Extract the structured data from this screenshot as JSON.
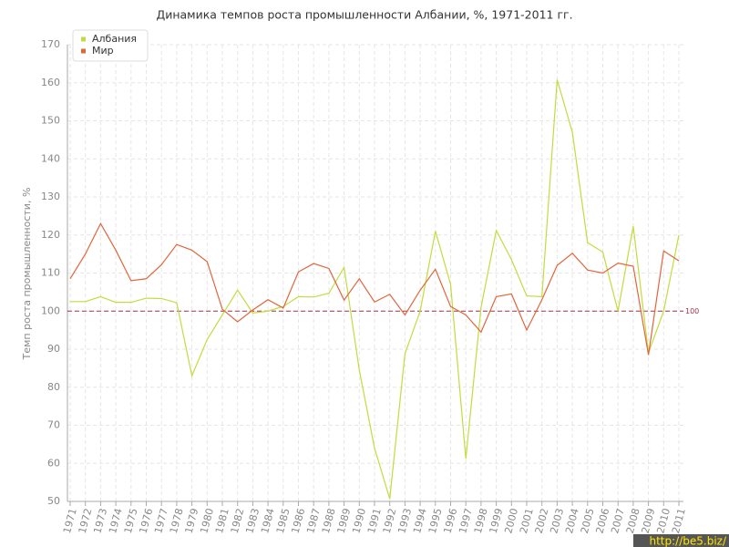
{
  "chart_data": {
    "type": "line",
    "title": "Динамика темпов роста промышленности Албании, %, 1971-2011 гг.",
    "y_label": "Темп роста промышленности, %",
    "categories": [
      "1971",
      "1972",
      "1973",
      "1974",
      "1975",
      "1976",
      "1977",
      "1978",
      "1979",
      "1980",
      "1981",
      "1982",
      "1983",
      "1984",
      "1985",
      "1986",
      "1987",
      "1988",
      "1989",
      "1990",
      "1991",
      "1992",
      "1993",
      "1994",
      "1995",
      "1996",
      "1997",
      "1998",
      "1999",
      "2000",
      "2001",
      "2002",
      "2003",
      "2004",
      "2005",
      "2006",
      "2007",
      "2008",
      "2009",
      "2010",
      "2011"
    ],
    "series": [
      {
        "name": "Албания",
        "color": "#c2dc3e",
        "values": [
          102.5,
          102.5,
          103.8,
          102.3,
          102.3,
          103.4,
          103.3,
          102.2,
          83,
          92.5,
          99,
          105.5,
          99.5,
          100,
          101.2,
          103.8,
          103.7,
          104.7,
          111.5,
          84.5,
          64,
          50.7,
          88.8,
          100,
          121,
          107,
          61.2,
          101,
          121.2,
          113.5,
          104,
          103.8,
          160.8,
          147,
          118,
          115.5,
          100,
          122.3,
          89,
          100,
          120
        ]
      },
      {
        "name": "Мир",
        "color": "#e0663c",
        "values": [
          108.5,
          115,
          123,
          116,
          108,
          108.5,
          112.2,
          117.5,
          116,
          113,
          100.5,
          97.2,
          100.3,
          103,
          100.8,
          110.3,
          112.5,
          111.2,
          102.9,
          108.5,
          102.4,
          104.4,
          99,
          105.5,
          111,
          101.2,
          99,
          94.5,
          103.8,
          104.5,
          95,
          103,
          112,
          115.2,
          110.8,
          110,
          112.6,
          111.8,
          88.5,
          115.8,
          113.2
        ]
      }
    ],
    "reference_line": 100,
    "reference_color": "#a0334a",
    "ylim": [
      50,
      170
    ],
    "yticks": [
      50,
      60,
      70,
      80,
      90,
      100,
      110,
      120,
      130,
      140,
      150,
      160,
      170
    ],
    "grid": true,
    "legend": "top-left",
    "watermark": "http://be5.biz/"
  }
}
